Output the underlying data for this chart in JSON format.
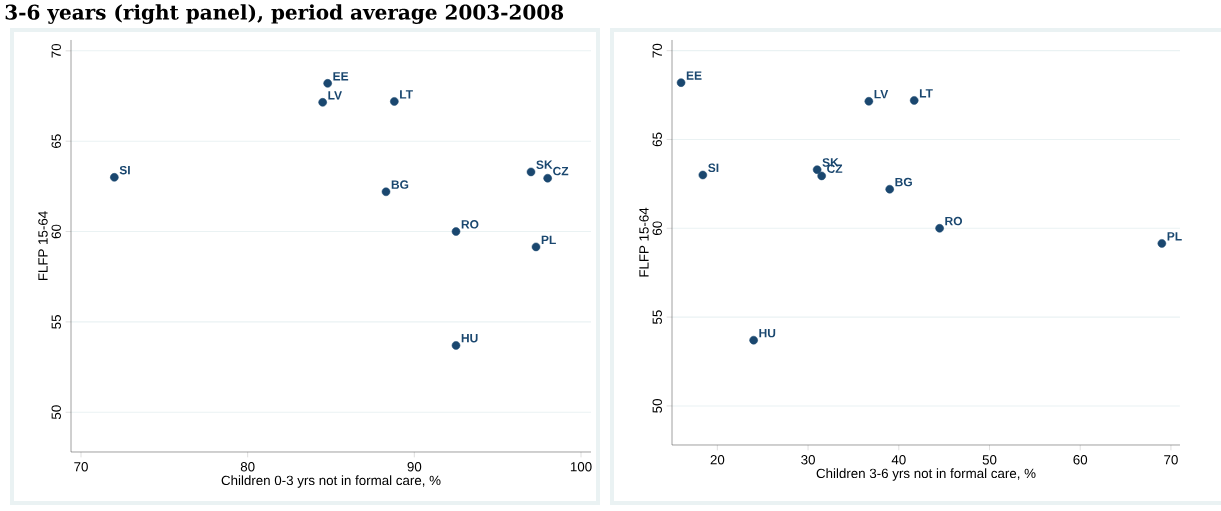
{
  "chart_data": [
    {
      "type": "scatter",
      "title": "3-6 years (right panel), period average 2003-2008",
      "xlabel": "Children 0-3 yrs not in formal care, %",
      "ylabel": "FLFP 15-64",
      "x": [
        84.8,
        84.5,
        88.8,
        72.0,
        97.0,
        98.0,
        88.3,
        92.5,
        97.3,
        92.5
      ],
      "values": [
        68.2,
        67.15,
        67.2,
        63.0,
        63.3,
        62.95,
        62.2,
        60.0,
        59.15,
        53.7
      ],
      "color": "#1a476f",
      "marker": "circle",
      "grid": "y",
      "xlim": [
        69.4,
        100.6
      ],
      "ylim": [
        47.8,
        70.6
      ],
      "xticks": [
        70,
        80,
        90,
        100
      ],
      "yticks": [
        50,
        55,
        60,
        65,
        70
      ],
      "annotations": [
        {
          "text": "EE",
          "x": 84.8,
          "y": 68.2
        },
        {
          "text": "LV",
          "x": 84.5,
          "y": 67.15
        },
        {
          "text": "LT",
          "x": 88.8,
          "y": 67.2
        },
        {
          "text": "SI",
          "x": 72.0,
          "y": 63.0
        },
        {
          "text": "SK",
          "x": 97.0,
          "y": 63.3
        },
        {
          "text": "CZ",
          "x": 98.0,
          "y": 62.95
        },
        {
          "text": "BG",
          "x": 88.3,
          "y": 62.2
        },
        {
          "text": "RO",
          "x": 92.5,
          "y": 60.0
        },
        {
          "text": "PL",
          "x": 97.3,
          "y": 59.15
        },
        {
          "text": "HU",
          "x": 92.5,
          "y": 53.7
        }
      ]
    },
    {
      "type": "scatter",
      "xlabel": "Children 3-6 yrs not in formal care, %",
      "ylabel": "FLFP 15-64",
      "x": [
        16.0,
        36.7,
        41.7,
        18.4,
        31.0,
        31.5,
        39.0,
        44.5,
        69.0,
        24.0
      ],
      "values": [
        68.2,
        67.15,
        67.2,
        63.0,
        63.3,
        62.95,
        62.2,
        60.0,
        59.15,
        53.7
      ],
      "color": "#1a476f",
      "marker": "circle",
      "grid": "y",
      "xlim": [
        15,
        71
      ],
      "ylim": [
        47.8,
        70.6
      ],
      "xticks": [
        20,
        30,
        40,
        50,
        60,
        70
      ],
      "yticks": [
        50,
        55,
        60,
        65,
        70
      ],
      "annotations": [
        {
          "text": "EE",
          "x": 16.0,
          "y": 68.2
        },
        {
          "text": "LV",
          "x": 36.7,
          "y": 67.15
        },
        {
          "text": "LT",
          "x": 41.7,
          "y": 67.2
        },
        {
          "text": "SI",
          "x": 18.4,
          "y": 63.0
        },
        {
          "text": "SK",
          "x": 31.0,
          "y": 63.3
        },
        {
          "text": "CZ",
          "x": 31.5,
          "y": 62.95
        },
        {
          "text": "BG",
          "x": 39.0,
          "y": 62.2
        },
        {
          "text": "RO",
          "x": 44.5,
          "y": 60.0
        },
        {
          "text": "PL",
          "x": 69.0,
          "y": 59.15
        },
        {
          "text": "HU",
          "x": 24.0,
          "y": 53.7
        }
      ]
    }
  ]
}
